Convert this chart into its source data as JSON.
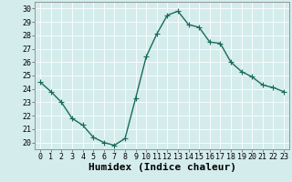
{
  "x": [
    0,
    1,
    2,
    3,
    4,
    5,
    6,
    7,
    8,
    9,
    10,
    11,
    12,
    13,
    14,
    15,
    16,
    17,
    18,
    19,
    20,
    21,
    22,
    23
  ],
  "y": [
    24.5,
    23.8,
    23.0,
    21.8,
    21.3,
    20.4,
    20.0,
    19.8,
    20.3,
    23.3,
    26.4,
    28.1,
    29.5,
    29.8,
    28.8,
    28.6,
    27.5,
    27.4,
    26.0,
    25.3,
    24.9,
    24.3,
    24.1,
    23.8
  ],
  "line_color": "#1a6b5a",
  "marker": "+",
  "marker_size": 4,
  "linewidth": 1.0,
  "xlabel": "Humidex (Indice chaleur)",
  "bg_color": "#d4ecec",
  "grid_color": "#ffffff",
  "xlim": [
    -0.5,
    23.5
  ],
  "ylim": [
    19.5,
    30.5
  ],
  "yticks": [
    20,
    21,
    22,
    23,
    24,
    25,
    26,
    27,
    28,
    29,
    30
  ],
  "xticks": [
    0,
    1,
    2,
    3,
    4,
    5,
    6,
    7,
    8,
    9,
    10,
    11,
    12,
    13,
    14,
    15,
    16,
    17,
    18,
    19,
    20,
    21,
    22,
    23
  ],
  "tick_fontsize": 6,
  "xlabel_fontsize": 8
}
